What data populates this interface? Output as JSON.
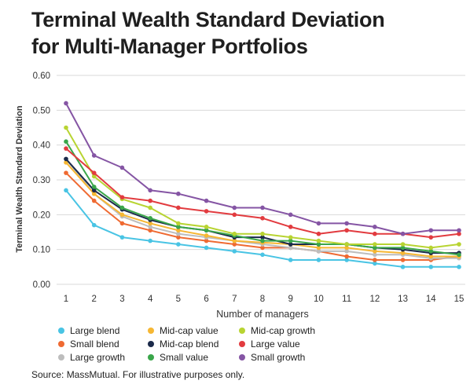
{
  "title_lines": [
    "Terminal Wealth Standard Deviation",
    "for Multi-Manager Portfolios"
  ],
  "source": "Source: MassMutual. For illustrative purposes only.",
  "chart_data": {
    "type": "line",
    "title": "Terminal Wealth Standard Deviation for Multi-Manager Portfolios",
    "xlabel": "Number of managers",
    "ylabel": "Terminal Wealth Standard Deviation",
    "x": [
      1,
      2,
      3,
      4,
      5,
      6,
      7,
      8,
      9,
      10,
      11,
      12,
      13,
      14,
      15
    ],
    "ylim": [
      0,
      0.6
    ],
    "yticks": [
      "0.00",
      "0.10",
      "0.20",
      "0.30",
      "0.40",
      "0.50",
      "0.60"
    ],
    "grid": "horizontal",
    "legend_position": "bottom",
    "series": [
      {
        "name": "Large blend",
        "color": "#49c4e4",
        "values": [
          0.27,
          0.17,
          0.135,
          0.125,
          0.115,
          0.105,
          0.095,
          0.085,
          0.07,
          0.07,
          0.07,
          0.06,
          0.05,
          0.05,
          0.05
        ]
      },
      {
        "name": "Small blend",
        "color": "#ef6a32",
        "values": [
          0.32,
          0.24,
          0.175,
          0.155,
          0.135,
          0.125,
          0.115,
          0.105,
          0.105,
          0.095,
          0.08,
          0.07,
          0.07,
          0.07,
          0.08
        ]
      },
      {
        "name": "Large growth",
        "color": "#bdbdbd",
        "values": [
          0.36,
          0.26,
          0.195,
          0.165,
          0.145,
          0.135,
          0.125,
          0.115,
          0.105,
          0.095,
          0.095,
          0.085,
          0.085,
          0.075,
          0.075
        ]
      },
      {
        "name": "Mid-cap value",
        "color": "#f6b733",
        "values": [
          0.35,
          0.26,
          0.2,
          0.175,
          0.155,
          0.14,
          0.125,
          0.12,
          0.115,
          0.105,
          0.105,
          0.095,
          0.09,
          0.08,
          0.08
        ]
      },
      {
        "name": "Mid-cap blend",
        "color": "#1b2a4a",
        "values": [
          0.36,
          0.27,
          0.215,
          0.185,
          0.165,
          0.155,
          0.135,
          0.135,
          0.115,
          0.115,
          0.115,
          0.105,
          0.1,
          0.09,
          0.09
        ]
      },
      {
        "name": "Small value",
        "color": "#3aa64a",
        "values": [
          0.41,
          0.28,
          0.22,
          0.19,
          0.165,
          0.155,
          0.14,
          0.125,
          0.125,
          0.115,
          0.115,
          0.105,
          0.105,
          0.095,
          0.085
        ]
      },
      {
        "name": "Mid-cap growth",
        "color": "#b8d432",
        "values": [
          0.45,
          0.31,
          0.245,
          0.22,
          0.175,
          0.165,
          0.145,
          0.145,
          0.135,
          0.125,
          0.115,
          0.115,
          0.115,
          0.105,
          0.115
        ]
      },
      {
        "name": "Large value",
        "color": "#e23b3f",
        "values": [
          0.39,
          0.32,
          0.25,
          0.24,
          0.22,
          0.21,
          0.2,
          0.19,
          0.165,
          0.145,
          0.155,
          0.145,
          0.145,
          0.135,
          0.145
        ]
      },
      {
        "name": "Small growth",
        "color": "#8555a4",
        "values": [
          0.52,
          0.37,
          0.335,
          0.27,
          0.26,
          0.24,
          0.22,
          0.22,
          0.2,
          0.175,
          0.175,
          0.165,
          0.145,
          0.155,
          0.155
        ]
      }
    ]
  }
}
